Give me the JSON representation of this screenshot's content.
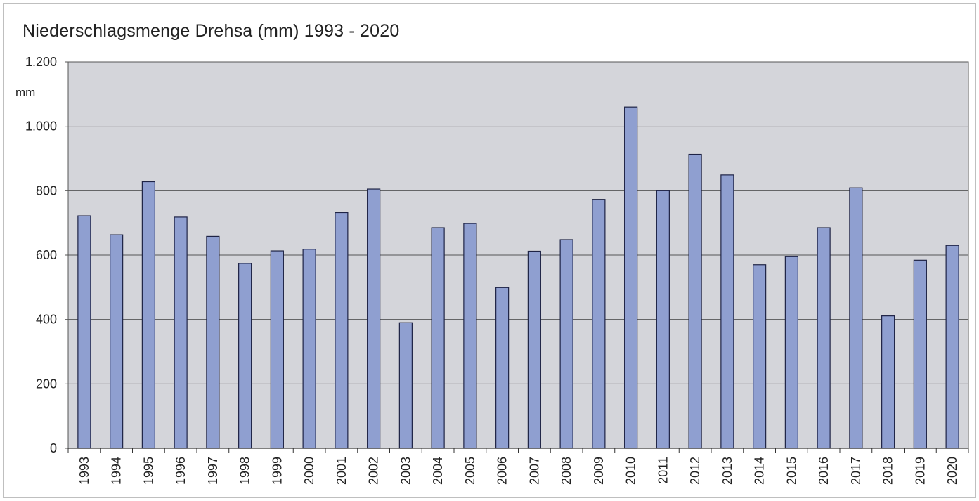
{
  "chart_data": {
    "type": "bar",
    "title": "Niederschlagsmenge Drehsa (mm) 1993 - 2020",
    "unit_label": "mm",
    "categories": [
      "1993",
      "1994",
      "1995",
      "1996",
      "1997",
      "1998",
      "1999",
      "2000",
      "2001",
      "2002",
      "2003",
      "2004",
      "2005",
      "2006",
      "2007",
      "2008",
      "2009",
      "2010",
      "2011",
      "2012",
      "2013",
      "2014",
      "2015",
      "2016",
      "2017",
      "2018",
      "2019",
      "2020"
    ],
    "values": [
      722,
      663,
      828,
      718,
      658,
      574,
      613,
      618,
      732,
      805,
      390,
      685,
      698,
      499,
      612,
      648,
      773,
      1060,
      800,
      913,
      849,
      570,
      595,
      685,
      809,
      411,
      584,
      630
    ],
    "ylim": [
      0,
      1200
    ],
    "yticks": [
      0,
      200,
      400,
      600,
      800,
      1000,
      1200
    ],
    "ytick_labels": [
      "0",
      "200",
      "400",
      "600",
      "800",
      "1.000",
      "1.200"
    ],
    "grid": true,
    "colors": {
      "bar": "#8f9fd0",
      "bar_stroke": "#1e2345",
      "plot_bg": "#d4d5da"
    }
  }
}
